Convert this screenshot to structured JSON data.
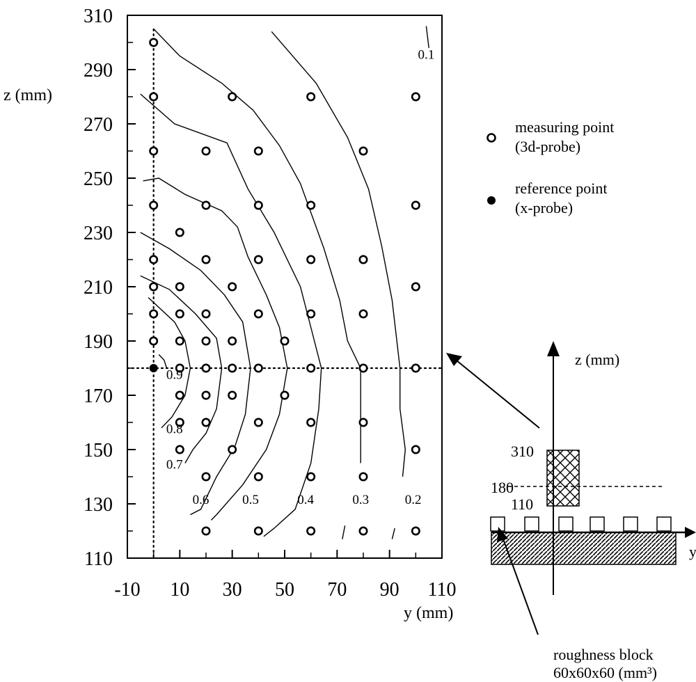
{
  "chart_data": {
    "type": "scatter",
    "xlabel": "y (mm)",
    "ylabel": "z (mm)",
    "xlim": [
      -10,
      110
    ],
    "ylim": [
      110,
      310
    ],
    "xticks": [
      -10,
      10,
      30,
      50,
      70,
      90,
      110
    ],
    "yticks": [
      110,
      130,
      150,
      170,
      190,
      210,
      230,
      250,
      270,
      290,
      310
    ],
    "grid": false,
    "reference_lines": {
      "y": 0,
      "z": 180
    },
    "measuring_points": [
      [
        0,
        300
      ],
      [
        0,
        280
      ],
      [
        30,
        280
      ],
      [
        60,
        280
      ],
      [
        100,
        280
      ],
      [
        0,
        260
      ],
      [
        20,
        260
      ],
      [
        40,
        260
      ],
      [
        80,
        260
      ],
      [
        0,
        240
      ],
      [
        20,
        240
      ],
      [
        40,
        240
      ],
      [
        60,
        240
      ],
      [
        100,
        240
      ],
      [
        10,
        230
      ],
      [
        0,
        220
      ],
      [
        20,
        220
      ],
      [
        40,
        220
      ],
      [
        60,
        220
      ],
      [
        80,
        220
      ],
      [
        0,
        210
      ],
      [
        10,
        210
      ],
      [
        30,
        210
      ],
      [
        100,
        210
      ],
      [
        0,
        200
      ],
      [
        10,
        200
      ],
      [
        20,
        200
      ],
      [
        40,
        200
      ],
      [
        60,
        200
      ],
      [
        80,
        200
      ],
      [
        0,
        190
      ],
      [
        10,
        190
      ],
      [
        20,
        190
      ],
      [
        30,
        190
      ],
      [
        50,
        190
      ],
      [
        10,
        180
      ],
      [
        20,
        180
      ],
      [
        30,
        180
      ],
      [
        40,
        180
      ],
      [
        60,
        180
      ],
      [
        80,
        180
      ],
      [
        100,
        180
      ],
      [
        10,
        170
      ],
      [
        20,
        170
      ],
      [
        30,
        170
      ],
      [
        50,
        170
      ],
      [
        10,
        160
      ],
      [
        20,
        160
      ],
      [
        40,
        160
      ],
      [
        60,
        160
      ],
      [
        80,
        160
      ],
      [
        10,
        150
      ],
      [
        30,
        150
      ],
      [
        100,
        150
      ],
      [
        20,
        140
      ],
      [
        40,
        140
      ],
      [
        60,
        140
      ],
      [
        80,
        140
      ],
      [
        20,
        120
      ],
      [
        40,
        120
      ],
      [
        60,
        120
      ],
      [
        80,
        120
      ],
      [
        100,
        120
      ]
    ],
    "reference_point": [
      0,
      180
    ],
    "contours": [
      {
        "label": "0.9",
        "label_pos": [
          8,
          176
        ],
        "points": [
          [
            2,
            185
          ],
          [
            4,
            183
          ],
          [
            5,
            180
          ]
        ]
      },
      {
        "label": "0.8",
        "label_pos": [
          8,
          156
        ],
        "points": [
          [
            -2,
            206
          ],
          [
            8,
            197
          ],
          [
            12,
            190
          ],
          [
            14,
            180
          ],
          [
            12,
            170
          ],
          [
            7,
            162
          ],
          [
            3,
            158
          ]
        ]
      },
      {
        "label": "0.7",
        "label_pos": [
          8,
          143
        ],
        "points": [
          [
            -5,
            214
          ],
          [
            6,
            209
          ],
          [
            16,
            200
          ],
          [
            24,
            191
          ],
          [
            26,
            180
          ],
          [
            24,
            165
          ],
          [
            20,
            156
          ],
          [
            15,
            150
          ],
          [
            12,
            145
          ]
        ]
      },
      {
        "label": "0.6",
        "label_pos": [
          18,
          130
        ],
        "points": [
          [
            -5,
            230
          ],
          [
            6,
            224
          ],
          [
            18,
            216
          ],
          [
            27,
            207
          ],
          [
            34,
            197
          ],
          [
            37,
            180
          ],
          [
            35,
            163
          ],
          [
            31,
            151
          ],
          [
            24,
            140
          ],
          [
            18,
            128
          ],
          [
            14,
            126
          ]
        ]
      },
      {
        "label": "0.5",
        "label_pos": [
          37,
          130
        ],
        "points": [
          [
            -4,
            249
          ],
          [
            2,
            250
          ],
          [
            12,
            244
          ],
          [
            26,
            238
          ],
          [
            32,
            232
          ],
          [
            36,
            221
          ],
          [
            43,
            207
          ],
          [
            48,
            195
          ],
          [
            51,
            180
          ],
          [
            48,
            163
          ],
          [
            43,
            150
          ],
          [
            34,
            137
          ],
          [
            24,
            126
          ],
          [
            22,
            124
          ]
        ]
      },
      {
        "label": "0.4",
        "label_pos": [
          58,
          130
        ],
        "points": [
          [
            -5,
            281
          ],
          [
            8,
            270
          ],
          [
            28,
            263
          ],
          [
            36,
            246
          ],
          [
            46,
            230
          ],
          [
            56,
            210
          ],
          [
            60,
            195
          ],
          [
            64,
            180
          ],
          [
            63,
            165
          ],
          [
            60,
            145
          ],
          [
            54,
            128
          ],
          [
            46,
            121
          ],
          [
            42,
            118
          ]
        ]
      },
      {
        "label": "0.3",
        "label_pos": [
          79,
          130
        ],
        "points": [
          [
            0,
            305
          ],
          [
            10,
            295
          ],
          [
            26,
            285
          ],
          [
            38,
            275
          ],
          [
            48,
            262
          ],
          [
            56,
            248
          ],
          [
            65,
            224
          ],
          [
            71,
            205
          ],
          [
            74,
            190
          ],
          [
            79,
            180
          ],
          [
            79,
            168
          ],
          [
            79,
            145
          ]
        ]
      },
      {
        "label": "0.2",
        "label_pos": [
          99,
          130
        ],
        "points": [
          [
            45,
            304
          ],
          [
            62,
            285
          ],
          [
            74,
            265
          ],
          [
            82,
            246
          ],
          [
            87,
            225
          ],
          [
            91,
            205
          ],
          [
            94,
            180
          ],
          [
            94,
            165
          ],
          [
            96,
            150
          ],
          [
            95,
            140
          ]
        ]
      },
      {
        "label": "0.1",
        "label_pos": [
          104,
          294
        ],
        "points": [
          [
            104,
            306
          ],
          [
            105,
            298
          ]
        ]
      }
    ],
    "contour_tails": [
      [
        [
          73,
          122
        ],
        [
          72,
          117
        ]
      ],
      [
        [
          92,
          121
        ],
        [
          91,
          117
        ]
      ]
    ]
  },
  "legend": {
    "measuring_point": [
      "measuring point",
      "(3d-probe)"
    ],
    "reference_point": [
      "reference point",
      "(x-probe)"
    ]
  },
  "inset": {
    "z_axis_label": "z (mm)",
    "y_axis_label": "y",
    "block_label": [
      "roughness block",
      "60x60x60 (mm³)"
    ],
    "level_labels": [
      "310",
      "180",
      "110"
    ]
  }
}
